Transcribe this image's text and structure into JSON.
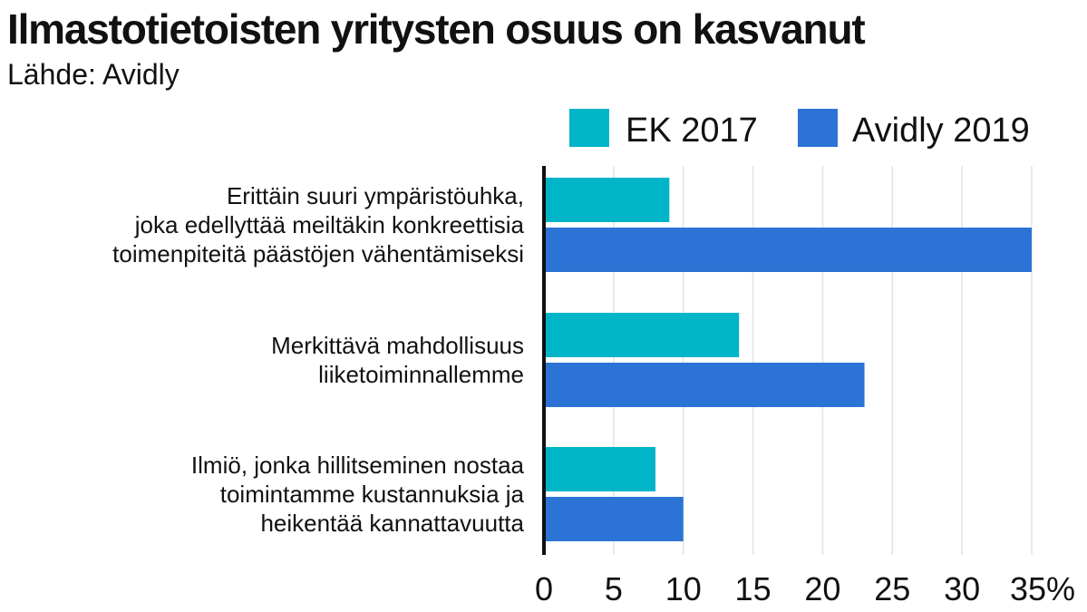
{
  "title": "Ilmastotietoisten yritysten osuus on kasvanut",
  "subtitle": "Lähde: Avidly",
  "chart_data": {
    "type": "bar",
    "orientation": "horizontal",
    "categories": [
      [
        "Erittäin suuri ympäristöuhka,",
        "joka edellyttää meiltäkin konkreettisia",
        "toimenpiteitä päästöjen vähentämiseksi"
      ],
      [
        "Merkittävä mahdollisuus",
        "liiketoiminnallemme"
      ],
      [
        "Ilmiö, jonka hillitseminen nostaa",
        "toimintamme kustannuksia ja",
        "heikentää kannattavuutta"
      ]
    ],
    "series": [
      {
        "name": "EK 2017",
        "color": "#00B5C8",
        "values": [
          9,
          14,
          8
        ]
      },
      {
        "name": "Avidly 2019",
        "color": "#2B74D6",
        "values": [
          35,
          23,
          10
        ]
      }
    ],
    "x_ticks": [
      "0",
      "5",
      "10",
      "15",
      "20",
      "25",
      "30",
      "35%"
    ],
    "xlim": [
      0,
      35
    ],
    "grid": true,
    "legend_position": "top-right"
  }
}
